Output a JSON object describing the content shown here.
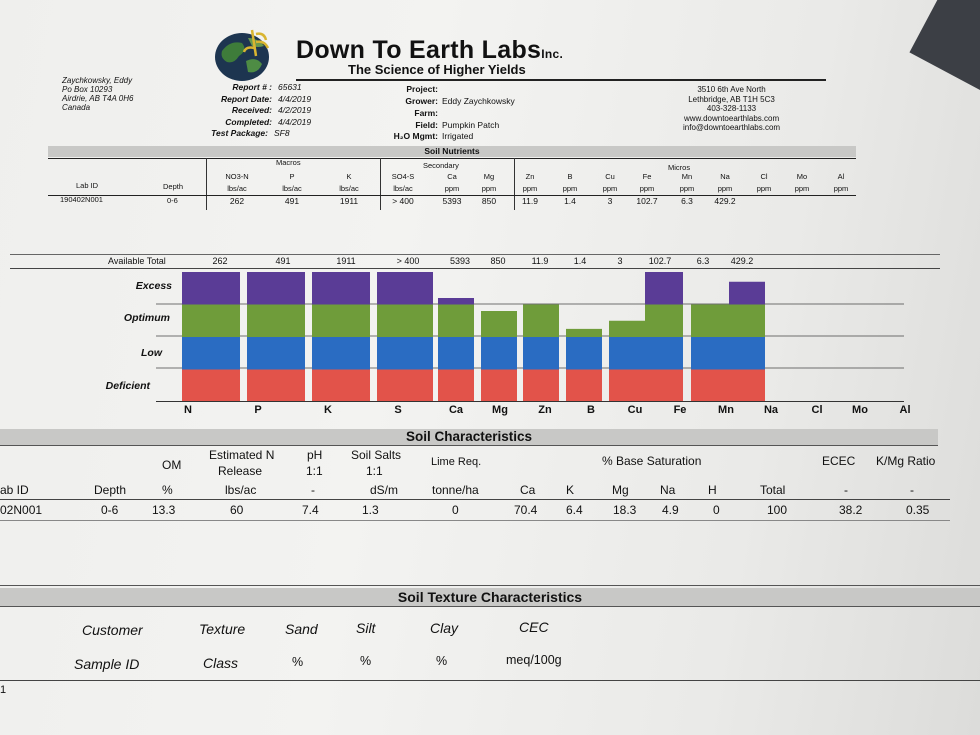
{
  "header": {
    "brand": "Down To Earth Labs",
    "brand_suffix": "Inc.",
    "tagline": "The Science of Higher Yields",
    "client_address": [
      "Zaychkowsky, Eddy",
      "Po Box 10293",
      "Airdrie, AB  T4A 0H6",
      "Canada"
    ],
    "report": [
      {
        "label": "Report # :",
        "value": "65631"
      },
      {
        "label": "Report Date:",
        "value": "4/4/2019"
      },
      {
        "label": "Received:",
        "value": "4/2/2019"
      },
      {
        "label": "Completed:",
        "value": "4/4/2019"
      },
      {
        "label": "Test Package:",
        "value": "SF8"
      }
    ],
    "project": [
      {
        "label": "Project:",
        "value": ""
      },
      {
        "label": "Grower:",
        "value": "Eddy Zaychkowsky"
      },
      {
        "label": "Farm:",
        "value": ""
      },
      {
        "label": "Field:",
        "value": "Pumpkin Patch"
      },
      {
        "label": "H₂O Mgmt:",
        "value": "Irrigated"
      }
    ],
    "lab_address": [
      "3510 6th Ave North",
      "Lethbridge, AB T1H 5C3",
      "403-328-1133",
      "www.downtoearthlabs.com",
      "info@downtoearthlabs.com"
    ]
  },
  "nutrients": {
    "title": "Soil Nutrients",
    "group_macros": "Macros",
    "group_secondary": "Secondary",
    "group_micros": "Micros",
    "lab_id_label": "Lab ID",
    "depth_label": "Depth",
    "columns": [
      {
        "name": "NO3-N",
        "unit": "lbs/ac",
        "value": "262"
      },
      {
        "name": "P",
        "unit": "lbs/ac",
        "value": "491"
      },
      {
        "name": "K",
        "unit": "lbs/ac",
        "value": "1911"
      },
      {
        "name": "SO4-S",
        "unit": "lbs/ac",
        "value": "> 400"
      },
      {
        "name": "Ca",
        "unit": "ppm",
        "value": "5393"
      },
      {
        "name": "Mg",
        "unit": "ppm",
        "value": "850"
      },
      {
        "name": "Zn",
        "unit": "ppm",
        "value": "11.9"
      },
      {
        "name": "B",
        "unit": "ppm",
        "value": "1.4"
      },
      {
        "name": "Cu",
        "unit": "ppm",
        "value": "3"
      },
      {
        "name": "Fe",
        "unit": "ppm",
        "value": "102.7"
      },
      {
        "name": "Mn",
        "unit": "ppm",
        "value": "6.3"
      },
      {
        "name": "Na",
        "unit": "ppm",
        "value": "429.2"
      },
      {
        "name": "Cl",
        "unit": "ppm",
        "value": ""
      },
      {
        "name": "Mo",
        "unit": "ppm",
        "value": ""
      },
      {
        "name": "Al",
        "unit": "ppm",
        "value": ""
      }
    ],
    "lab_id": "190402N001",
    "depth": "0-6"
  },
  "chart_data": {
    "type": "bar",
    "available_label": "Available Total",
    "available": [
      "262",
      "491",
      "1911",
      "> 400",
      "5393",
      "850",
      "11.9",
      "1.4",
      "3",
      "102.7",
      "6.3",
      "429.2",
      "",
      "",
      ""
    ],
    "categories": [
      "N",
      "P",
      "K",
      "S",
      "Ca",
      "Mg",
      "Zn",
      "B",
      "Cu",
      "Fe",
      "Mn",
      "Na",
      "Cl",
      "Mo",
      "Al"
    ],
    "levels": [
      "Excess",
      "Optimum",
      "Low",
      "Deficient"
    ],
    "level_colors": [
      "#5a3c96",
      "#6f9c3a",
      "#2a6cc2",
      "#e2534a"
    ],
    "values": [
      4,
      4,
      4,
      4,
      3.2,
      2.8,
      3.0,
      2.25,
      2.5,
      4,
      3.0,
      3.7,
      0,
      0,
      0
    ]
  },
  "soil_characteristics": {
    "title": "Soil Characteristics",
    "headers": {
      "om": "OM",
      "est_n": "Estimated N",
      "release": "Release",
      "ph": "pH",
      "ph_ratio": "1:1",
      "salts": "Soil Salts",
      "salts_ratio": "1:1",
      "lime": "Lime Req.",
      "base_sat": "% Base Saturation",
      "ecec": "ECEC",
      "kmg": "K/Mg Ratio"
    },
    "units": [
      "ab ID",
      "Depth",
      "%",
      "lbs/ac",
      "-",
      "dS/m",
      "tonne/ha",
      "Ca",
      "K",
      "Mg",
      "Na",
      "H",
      "Total",
      "-",
      "-"
    ],
    "row": [
      "02N001",
      "0-6",
      "13.3",
      "60",
      "7.4",
      "1.3",
      "0",
      "70.4",
      "6.4",
      "18.3",
      "4.9",
      "0",
      "100",
      "38.2",
      "0.35"
    ]
  },
  "texture": {
    "title": "Soil Texture Characteristics",
    "headers1": [
      "Customer",
      "Texture",
      "Sand",
      "Silt",
      "Clay",
      "CEC"
    ],
    "headers2": [
      "Sample ID",
      "Class",
      "%",
      "%",
      "%",
      "meq/100g"
    ],
    "row_marker": "1"
  }
}
